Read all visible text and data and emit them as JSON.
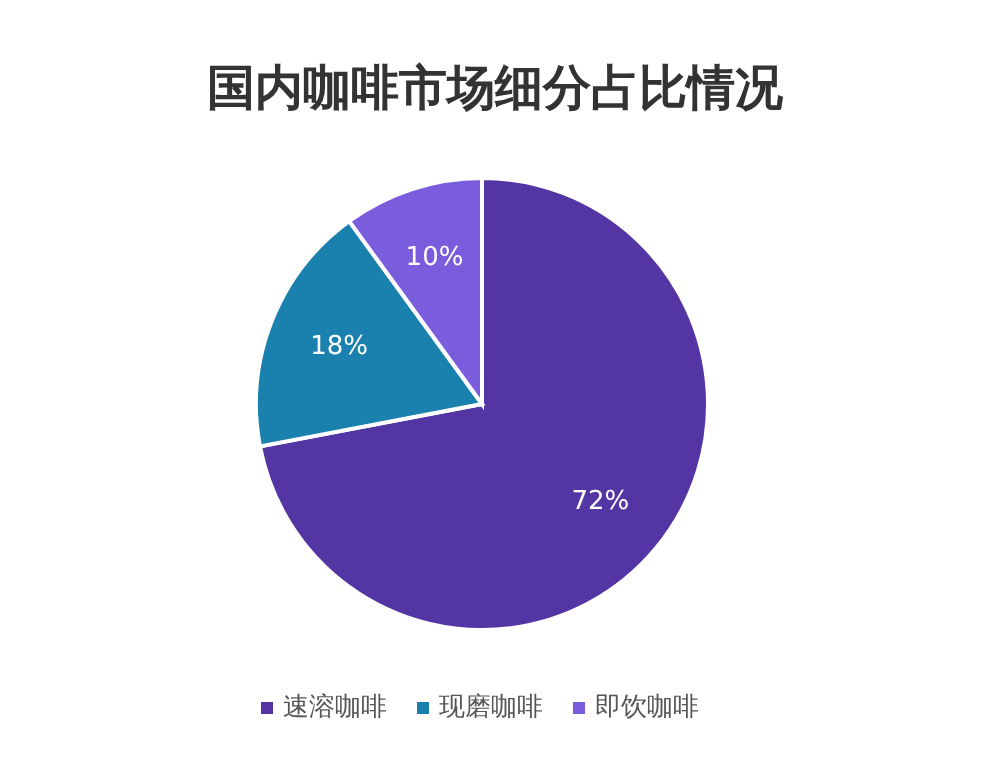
{
  "chart_data": {
    "type": "pie",
    "title": "国内咖啡市场细分占比情况",
    "categories": [
      "速溶咖啡",
      "现磨咖啡",
      "即饮咖啡"
    ],
    "values": [
      72,
      18,
      10
    ],
    "value_labels": [
      "72%",
      "18%",
      "10%"
    ],
    "colors": [
      "#5335a3",
      "#1a80ae",
      "#7a5ddc"
    ],
    "legend": "bottom"
  }
}
